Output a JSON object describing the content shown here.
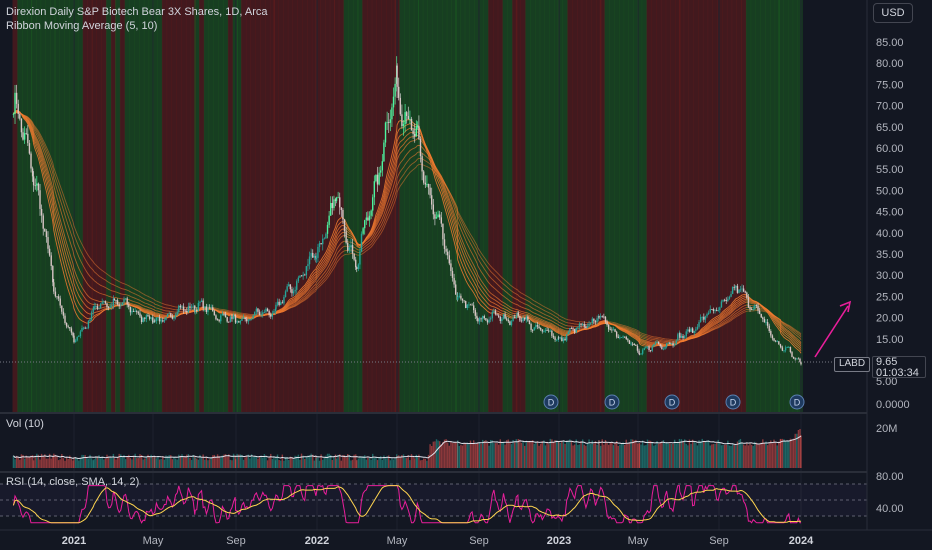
{
  "header": {
    "title": "Direxion Daily S&P Biotech Bear 3X Shares, 1D, Arca",
    "indicator": "Ribbon Moving Average (5, 10)",
    "currency": "USD"
  },
  "price_tag": {
    "symbol": "LABD",
    "price": "9.65",
    "countdown": "01:03:34"
  },
  "panes": {
    "volume_label": "Vol (10)",
    "rsi_label": "RSI (14, close, SMA, 14, 2)"
  },
  "colors": {
    "bull": "#26a69a",
    "bright_bull": "#4cf6a0",
    "bear": "#ef5350",
    "ribbon": "#f57c30",
    "rsi": "#e91e9b",
    "rsi_ma": "#ffd54f",
    "arrow": "#e91e9b",
    "bg": "#131722"
  },
  "chart_data": [
    {
      "type": "candlestick",
      "title": "Direxion Daily S&P Biotech Bear 3X Shares, 1D, Arca",
      "y_scale": "custom (non-linear price axis)",
      "y_ticks": [
        "85.00",
        "80.00",
        "75.00",
        "70.00",
        "65.00",
        "60.00",
        "55.00",
        "50.00",
        "45.00",
        "40.00",
        "35.00",
        "30.00",
        "25.00",
        "20.00",
        "15.00",
        "10.00",
        "5.00",
        "0.0000"
      ],
      "x_ticks": [
        "2021",
        "May",
        "Sep",
        "2022",
        "May",
        "Sep",
        "2023",
        "May",
        "Sep",
        "2024"
      ],
      "last_price": 9.65,
      "dividend_markers": [
        "D",
        "D",
        "D",
        "D",
        "D"
      ],
      "approx_close_path": [
        {
          "date": "2020-10",
          "close": 70
        },
        {
          "date": "2020-11",
          "close": 55
        },
        {
          "date": "2020-12",
          "close": 27
        },
        {
          "date": "2021-01",
          "close": 14
        },
        {
          "date": "2021-02",
          "close": 22
        },
        {
          "date": "2021-03",
          "close": 24
        },
        {
          "date": "2021-05",
          "close": 19
        },
        {
          "date": "2021-07",
          "close": 23
        },
        {
          "date": "2021-09",
          "close": 19
        },
        {
          "date": "2021-11",
          "close": 22
        },
        {
          "date": "2022-01",
          "close": 35
        },
        {
          "date": "2022-02",
          "close": 48
        },
        {
          "date": "2022-03",
          "close": 32
        },
        {
          "date": "2022-05",
          "close": 75
        },
        {
          "date": "2022-06",
          "close": 60
        },
        {
          "date": "2022-08",
          "close": 25
        },
        {
          "date": "2022-09",
          "close": 20
        },
        {
          "date": "2022-11",
          "close": 20
        },
        {
          "date": "2023-01",
          "close": 15
        },
        {
          "date": "2023-03",
          "close": 20
        },
        {
          "date": "2023-05",
          "close": 12
        },
        {
          "date": "2023-07",
          "close": 15
        },
        {
          "date": "2023-10",
          "close": 27
        },
        {
          "date": "2023-12",
          "close": 13
        },
        {
          "date": "2024-01",
          "close": 9.65
        }
      ],
      "series": [
        {
          "name": "Ribbon Moving Average (5, 10)"
        }
      ]
    },
    {
      "type": "bar",
      "title": "Vol (10)",
      "y_ticks": [
        "20M"
      ]
    },
    {
      "type": "line",
      "title": "RSI (14, close, SMA, 14, 2)",
      "y_ticks": [
        "80.00",
        "40.00"
      ]
    }
  ]
}
